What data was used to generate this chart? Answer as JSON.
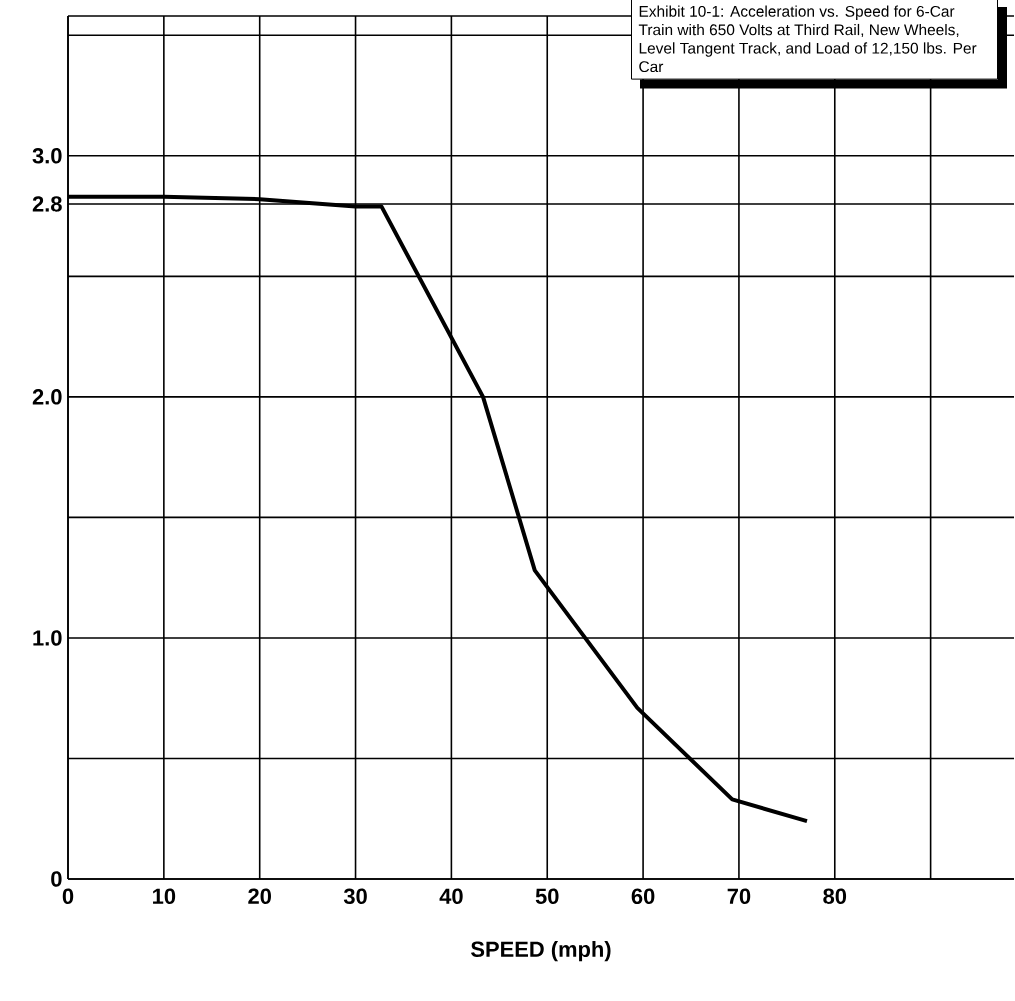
{
  "chart_data": {
    "type": "line",
    "xlabel": "SPEED (mph)",
    "annotations": [
      "Exhibit 10-1: Acceleration vs. Speed for 6-Car Train with 650 Volts at Third Rail, New Wheels, Level Tangent Track, and Load of 12,150 lbs. Per Car"
    ],
    "series": [
      {
        "color": "#000000",
        "x": [
          0,
          10,
          20,
          30,
          32.7,
          43.3,
          48.7,
          59.4,
          69.3,
          77.1
        ],
        "values": [
          2.83,
          2.83,
          2.82,
          2.79,
          2.79,
          2.0,
          1.28,
          0.71,
          0.33,
          0.24
        ]
      }
    ],
    "xlim": [
      0,
      98.7
    ],
    "ylim": [
      0,
      3.58
    ],
    "xticks": [
      0,
      10,
      20,
      30,
      40,
      50,
      60,
      70,
      80,
      {
        "value": 90,
        "label": null
      }
    ],
    "yticks": [
      0,
      {
        "value": 0.5,
        "label": null
      },
      {
        "value": 1,
        "label": "1.0"
      },
      {
        "value": 1.5,
        "label": null
      },
      {
        "value": 2,
        "label": "2.0"
      },
      {
        "value": 2.5,
        "label": null
      },
      2.8,
      {
        "value": 3,
        "label": "3.0"
      },
      {
        "value": 3.5,
        "label": null
      }
    ],
    "grid": true,
    "legend": false,
    "marker": "none",
    "line_style": "solid"
  }
}
